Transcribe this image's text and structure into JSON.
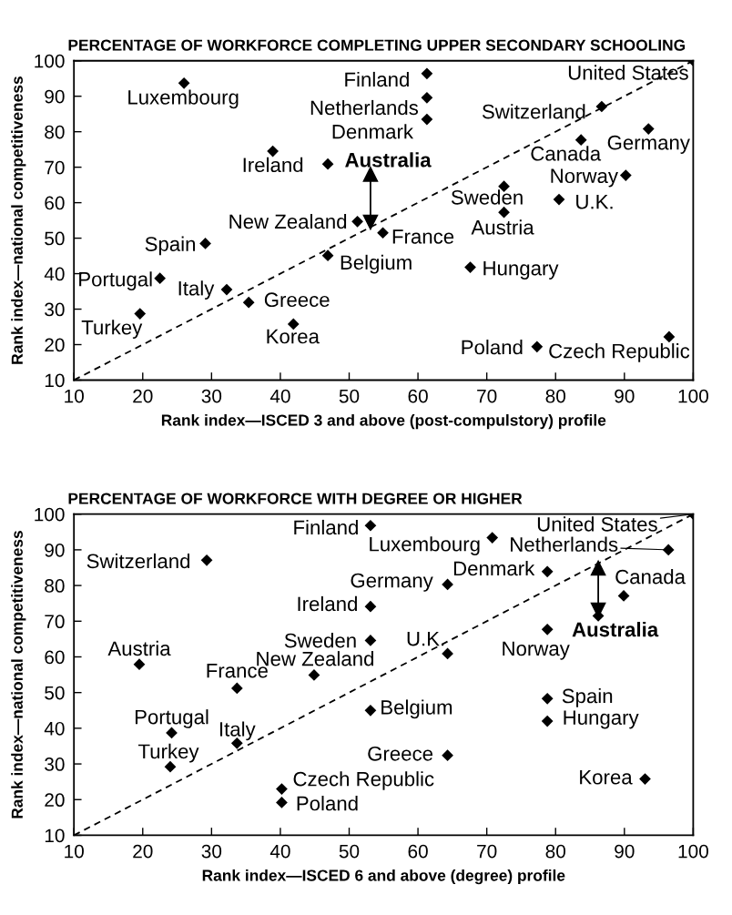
{
  "chart_data": [
    {
      "type": "scatter",
      "title": "PERCENTAGE OF WORKFORCE COMPLETING UPPER SECONDARY SCHOOLING",
      "xlabel": "Rank index—ISCED 3 and above (post-compulstory) profile",
      "ylabel": "Rank index—national competitiveness",
      "xlim": [
        10,
        100
      ],
      "ylim": [
        10,
        100
      ],
      "xticks": [
        10,
        20,
        30,
        40,
        50,
        60,
        70,
        80,
        90,
        100
      ],
      "yticks": [
        10,
        20,
        30,
        40,
        50,
        60,
        70,
        80,
        90,
        100
      ],
      "grid": false,
      "legend": false,
      "series": [
        {
          "type": "line",
          "color": "#000000",
          "line_style": "dashed",
          "marker": "none",
          "x": [
            10,
            100
          ],
          "values": [
            10,
            100
          ]
        },
        {
          "type": "line",
          "color": "#000000",
          "line_style": "solid",
          "marker": "triangle",
          "x": [
            53.1,
            53.1
          ],
          "values": [
            54.5,
            68
          ]
        },
        {
          "type": "scatter",
          "color": "#000000",
          "marker": "diamond",
          "x": [
            26.0,
            61.3,
            61.3,
            61.3,
            100,
            86.7,
            93.5,
            83.7,
            90.2,
            80.5,
            72.5,
            72.5,
            38.9,
            46.9,
            51.2,
            54.9,
            46.9,
            67.6,
            29.1,
            22.5,
            32.2,
            35.4,
            19.6,
            41.9,
            77.3,
            96.5
          ],
          "values": [
            93.7,
            96.4,
            89.6,
            83.5,
            100,
            87.1,
            80.8,
            77.7,
            67.7,
            60.9,
            64.6,
            57.3,
            74.5,
            70.9,
            54.7,
            51.5,
            45.1,
            41.8,
            48.5,
            38.7,
            35.5,
            31.9,
            28.7,
            25.8,
            19.4,
            22.2
          ]
        }
      ],
      "annotations": [
        {
          "text": "Luxembourg",
          "x": 26.0,
          "y": 93.7
        },
        {
          "text": "Finland",
          "x": 61.3,
          "y": 96.4
        },
        {
          "text": "Netherlands",
          "x": 61.3,
          "y": 89.6
        },
        {
          "text": "Denmark",
          "x": 61.3,
          "y": 83.5
        },
        {
          "text": "United States",
          "x": 100,
          "y": 100
        },
        {
          "text": "Switzerland",
          "x": 86.7,
          "y": 87.1
        },
        {
          "text": "Germany",
          "x": 93.5,
          "y": 80.8
        },
        {
          "text": "Canada",
          "x": 83.7,
          "y": 77.7
        },
        {
          "text": "Norway",
          "x": 90.2,
          "y": 67.7
        },
        {
          "text": "U.K.",
          "x": 80.5,
          "y": 60.9
        },
        {
          "text": "Sweden",
          "x": 72.5,
          "y": 64.6
        },
        {
          "text": "Austria",
          "x": 72.5,
          "y": 57.3
        },
        {
          "text": "Ireland",
          "x": 38.9,
          "y": 74.5
        },
        {
          "text": "Australia",
          "x": 46.9,
          "y": 70.9
        },
        {
          "text": "New Zealand",
          "x": 51.2,
          "y": 54.7
        },
        {
          "text": "France",
          "x": 54.9,
          "y": 51.5
        },
        {
          "text": "Belgium",
          "x": 46.9,
          "y": 45.1
        },
        {
          "text": "Hungary",
          "x": 67.6,
          "y": 41.8
        },
        {
          "text": "Spain",
          "x": 29.1,
          "y": 48.5
        },
        {
          "text": "Portugal",
          "x": 22.5,
          "y": 38.7
        },
        {
          "text": "Italy",
          "x": 32.2,
          "y": 35.5
        },
        {
          "text": "Greece",
          "x": 35.4,
          "y": 31.9
        },
        {
          "text": "Turkey",
          "x": 19.6,
          "y": 28.7
        },
        {
          "text": "Korea",
          "x": 41.9,
          "y": 25.8
        },
        {
          "text": "Poland",
          "x": 77.3,
          "y": 19.4
        },
        {
          "text": "Czech Republic",
          "x": 96.5,
          "y": 22.2
        }
      ]
    },
    {
      "type": "scatter",
      "title": "PERCENTAGE OF WORKFORCE WITH DEGREE OR HIGHER",
      "xlabel": "Rank index—ISCED 6 and above (degree) profile",
      "ylabel": "Rank index—national competitiveness",
      "xlim": [
        10,
        100
      ],
      "ylim": [
        10,
        100
      ],
      "xticks": [
        10,
        20,
        30,
        40,
        50,
        60,
        70,
        80,
        90,
        100
      ],
      "yticks": [
        10,
        20,
        30,
        40,
        50,
        60,
        70,
        80,
        90,
        100
      ],
      "grid": false,
      "legend": false,
      "series": [
        {
          "type": "line",
          "color": "#000000",
          "line_style": "dashed",
          "marker": "none",
          "x": [
            10,
            100
          ],
          "values": [
            10,
            100
          ]
        },
        {
          "type": "line",
          "color": "#000000",
          "line_style": "solid",
          "marker": "triangle",
          "x": [
            86.2,
            86.2
          ],
          "values": [
            73.1,
            84.9
          ]
        },
        {
          "type": "scatter",
          "color": "#000000",
          "marker": "diamond",
          "x": [
            53.1,
            70.8,
            100,
            96.4,
            78.8,
            64.3,
            89.9,
            53.1,
            86.2,
            78.8,
            53.1,
            64.3,
            29.3,
            19.5,
            33.7,
            44.9,
            53.1,
            78.8,
            78.8,
            24.2,
            33.7,
            24.0,
            64.3,
            40.2,
            40.2,
            93.0
          ],
          "values": [
            96.8,
            93.4,
            100,
            90.0,
            83.9,
            80.3,
            77.1,
            74.1,
            71.5,
            67.7,
            64.6,
            60.9,
            87.1,
            57.9,
            51.2,
            54.9,
            45.0,
            48.3,
            42.0,
            38.7,
            35.8,
            29.2,
            32.4,
            23.0,
            19.2,
            25.8
          ]
        }
      ],
      "annotations": [
        {
          "text": "Finland",
          "x": 53.1,
          "y": 96.8
        },
        {
          "text": "Luxembourg",
          "x": 70.8,
          "y": 93.4
        },
        {
          "text": "United States",
          "x": 100,
          "y": 100
        },
        {
          "text": "Netherlands",
          "x": 96.4,
          "y": 90.0
        },
        {
          "text": "Denmark",
          "x": 78.8,
          "y": 83.9
        },
        {
          "text": "Germany",
          "x": 64.3,
          "y": 80.3
        },
        {
          "text": "Canada",
          "x": 89.9,
          "y": 77.1
        },
        {
          "text": "Ireland",
          "x": 53.1,
          "y": 74.1
        },
        {
          "text": "Australia",
          "x": 86.2,
          "y": 71.5
        },
        {
          "text": "Norway",
          "x": 78.8,
          "y": 67.7
        },
        {
          "text": "Sweden",
          "x": 53.1,
          "y": 64.6
        },
        {
          "text": "U.K.",
          "x": 64.3,
          "y": 60.9
        },
        {
          "text": "Switzerland",
          "x": 29.3,
          "y": 87.1
        },
        {
          "text": "Austria",
          "x": 19.5,
          "y": 57.9
        },
        {
          "text": "France",
          "x": 33.7,
          "y": 51.2
        },
        {
          "text": "New Zealand",
          "x": 44.9,
          "y": 54.9
        },
        {
          "text": "Belgium",
          "x": 53.1,
          "y": 45.0
        },
        {
          "text": "Spain",
          "x": 78.8,
          "y": 48.3
        },
        {
          "text": "Hungary",
          "x": 78.8,
          "y": 42.0
        },
        {
          "text": "Portugal",
          "x": 24.2,
          "y": 38.7
        },
        {
          "text": "Italy",
          "x": 33.7,
          "y": 35.8
        },
        {
          "text": "Turkey",
          "x": 24.0,
          "y": 29.2
        },
        {
          "text": "Greece",
          "x": 64.3,
          "y": 32.4
        },
        {
          "text": "Czech Republic",
          "x": 40.2,
          "y": 23.0
        },
        {
          "text": "Poland",
          "x": 40.2,
          "y": 19.2
        },
        {
          "text": "Korea",
          "x": 93.0,
          "y": 25.8
        }
      ]
    }
  ]
}
